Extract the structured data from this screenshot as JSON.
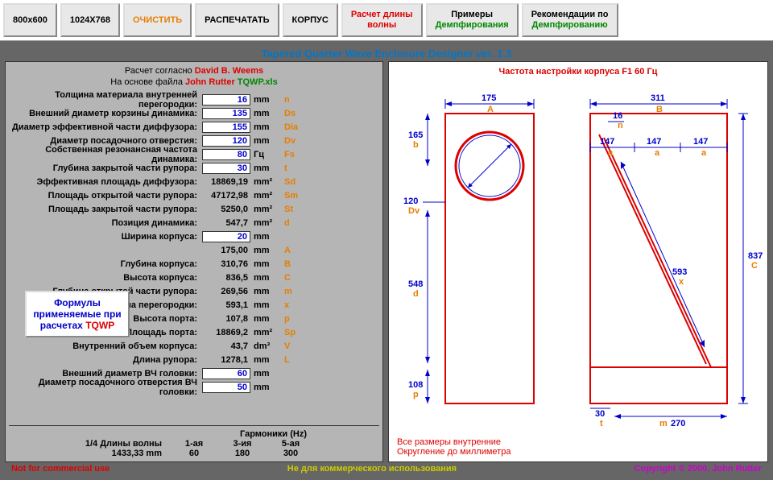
{
  "toolbar": {
    "b1": "800x600",
    "b2": "1024X768",
    "b3": "ОЧИСТИТЬ",
    "b4": "РАСПЕЧАТАТЬ",
    "b5": "КОРПУС",
    "b6l1": "Расчет длины",
    "b6l2": "волны",
    "b7l1": "Примеры",
    "b7l2": "Демпфирования",
    "b8l1": "Рекомендации по",
    "b8l2": "Демпфированию"
  },
  "title": "Tapered Quarter Wave Enclosure Designer ver. 1.3",
  "hdr1a": "Расчет согласно ",
  "hdr1b": "David B. Weems",
  "hdr2a": "На основе файла ",
  "hdr2b": "John Rutter ",
  "hdr2c": "TQWP.xls",
  "params": [
    {
      "l": "Толщина материала внутренней перегородки:",
      "v": "16",
      "u": "mm",
      "s": "n",
      "inp": true
    },
    {
      "l": "Внешний диаметр корзины динамика:",
      "v": "135",
      "u": "mm",
      "s": "Ds",
      "inp": true
    },
    {
      "l": "Диаметр эффективной части диффузора:",
      "v": "155",
      "u": "mm",
      "s": "Dia",
      "inp": true
    },
    {
      "l": "Диаметр посадочного отверстия:",
      "v": "120",
      "u": "mm",
      "s": "Dv",
      "inp": true
    },
    {
      "l": "Собственная резонансная частота динамика:",
      "v": "80",
      "u": "Гц",
      "s": "Fs",
      "inp": true
    },
    {
      "l": "Глубина закрытой части рупора:",
      "v": "30",
      "u": "mm",
      "s": "t",
      "inp": true
    },
    {
      "l": "Эффективная площадь диффузора:",
      "v": "18869,19",
      "u": "mm²",
      "s": "Sd",
      "inp": false
    },
    {
      "l": "Площадь открытой части рупора:",
      "v": "47172,98",
      "u": "mm²",
      "s": "Sm",
      "inp": false
    },
    {
      "l": "Площадь закрытой части рупора:",
      "v": "5250,0",
      "u": "mm²",
      "s": "St",
      "inp": false
    },
    {
      "l": "Позиция динамика:",
      "v": "547,7",
      "u": "mm²",
      "s": "d",
      "inp": false
    },
    {
      "l": "Ширина корпуса:",
      "v": "20",
      "u": "mm",
      "s": "",
      "inp": true
    },
    {
      "l": "",
      "v": "175,00",
      "u": "mm",
      "s": "A",
      "inp": false
    },
    {
      "l": "Глубина корпуса:",
      "v": "310,76",
      "u": "mm",
      "s": "B",
      "inp": false
    },
    {
      "l": "Высота корпуса:",
      "v": "836,5",
      "u": "mm",
      "s": "C",
      "inp": false
    },
    {
      "l": "Глубина открытой части рупора:",
      "v": "269,56",
      "u": "mm",
      "s": "m",
      "inp": false
    },
    {
      "l": "Длина перегородки:",
      "v": "593,1",
      "u": "mm",
      "s": "x",
      "inp": false
    },
    {
      "l": "Высота порта:",
      "v": "107,8",
      "u": "mm",
      "s": "p",
      "inp": false
    },
    {
      "l": "Площадь порта:",
      "v": "18869,2",
      "u": "mm²",
      "s": "Sp",
      "inp": false
    },
    {
      "l": "Внутренний объем корпуса:",
      "v": "43,7",
      "u": "dm³",
      "s": "V",
      "inp": false
    },
    {
      "l": "Длина рупора:",
      "v": "1278,1",
      "u": "mm",
      "s": "L",
      "inp": false
    },
    {
      "l": "Внешний диаметр ВЧ головки:",
      "v": "60",
      "u": "mm",
      "s": "",
      "inp": true
    },
    {
      "l": "Диаметр посадочного отверстия ВЧ головки:",
      "v": "50",
      "u": "mm",
      "s": "",
      "inp": true
    }
  ],
  "formulas": {
    "l1": "Формулы",
    "l2": "применяемые при",
    "l3": "расчетах ",
    "l4": "TQWP"
  },
  "harm": {
    "title": "Гармоники (Hz)",
    "row_lbl": "1/4 Длины волны",
    "row_val": "1433,33 mm",
    "h1": "1-ая",
    "h3": "3-ия",
    "h5": "5-ая",
    "v1": "60",
    "v3": "180",
    "v5": "300"
  },
  "footer": {
    "nfc": "Not for commercial use",
    "ru": "Не для коммерческого использования",
    "cp": "Copyright © 2000, John Rutter"
  },
  "right": {
    "title_a": "Частота настройки корпуса F1 ",
    "title_b": "60",
    "title_c": " Гц",
    "foot1": "Все размеры внутренние",
    "foot2": "Округление до миллиметра"
  },
  "dims": {
    "A": "175",
    "AL": "A",
    "b": "165",
    "bL": "b",
    "Dv": "120",
    "DvL": "Dv",
    "d": "548",
    "dL": "d",
    "p": "108",
    "pL": "p",
    "B": "311",
    "BL": "B",
    "n": "16",
    "nL": "n",
    "a1": "147",
    "a1L": "a",
    "a2": "147",
    "a2L": "a",
    "a3": "147",
    "a3L": "a",
    "x": "593",
    "xL": "x",
    "C": "837",
    "CL": "C",
    "t": "30",
    "tL": "t",
    "m": "270",
    "mL": "m"
  }
}
